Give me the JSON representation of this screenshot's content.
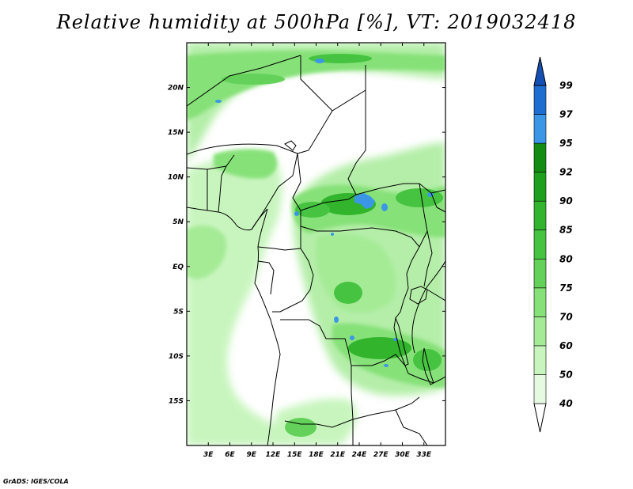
{
  "title": "Relative humidity at 500hPa [%], VT: 2019032418",
  "credit": "GrADS: IGES/COLA",
  "map": {
    "lon_range": [
      0,
      36
    ],
    "lat_range": [
      -20,
      25
    ],
    "lon_ticks": [
      {
        "lon": 3,
        "label": "3E"
      },
      {
        "lon": 6,
        "label": "6E"
      },
      {
        "lon": 9,
        "label": "9E"
      },
      {
        "lon": 12,
        "label": "12E"
      },
      {
        "lon": 15,
        "label": "15E"
      },
      {
        "lon": 18,
        "label": "18E"
      },
      {
        "lon": 21,
        "label": "21E"
      },
      {
        "lon": 24,
        "label": "24E"
      },
      {
        "lon": 27,
        "label": "27E"
      },
      {
        "lon": 30,
        "label": "30E"
      },
      {
        "lon": 33,
        "label": "33E"
      }
    ],
    "lat_ticks": [
      {
        "lat": 20,
        "label": "20N"
      },
      {
        "lat": 15,
        "label": "15N"
      },
      {
        "lat": 10,
        "label": "10N"
      },
      {
        "lat": 5,
        "label": "5N"
      },
      {
        "lat": 0,
        "label": "EQ"
      },
      {
        "lat": -5,
        "label": "5S"
      },
      {
        "lat": -10,
        "label": "10S"
      },
      {
        "lat": -15,
        "label": "15S"
      }
    ]
  },
  "colorbar": {
    "levels": [
      "40",
      "50",
      "60",
      "70",
      "75",
      "80",
      "85",
      "90",
      "92",
      "95",
      "97",
      "99"
    ],
    "colors": [
      "#ffffff",
      "#e6fae1",
      "#c8f5be",
      "#a5eb96",
      "#86e178",
      "#64d25a",
      "#46c341",
      "#32b42d",
      "#1ea01e",
      "#148c14",
      "#3c96e6",
      "#1e6ed2",
      "#1450b4"
    ]
  },
  "colors": {
    "border": "#000000",
    "background": "#ffffff"
  }
}
